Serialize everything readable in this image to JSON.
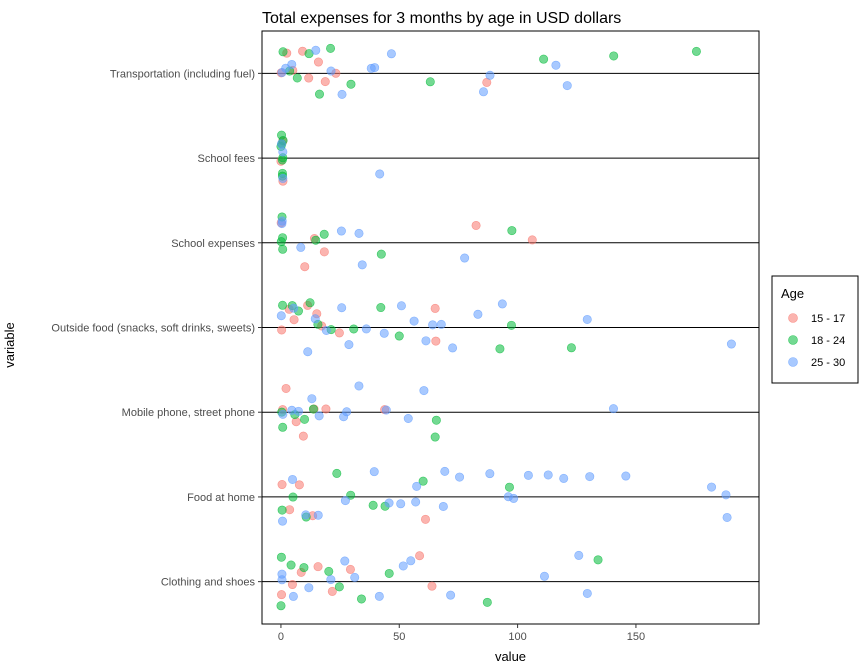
{
  "chart_data": {
    "type": "scatter",
    "title": "Total expenses for 3 months by age in USD dollars",
    "xlabel": "value",
    "ylabel": "variable",
    "xlim": [
      -8,
      202
    ],
    "x_ticks": [
      "0",
      "50",
      "100",
      "150"
    ],
    "categories": [
      "Clothing and shoes",
      "Food at home",
      "Mobile phone, street phone",
      "Outside food (snacks, soft drinks, sweets)",
      "School expenses",
      "School fees",
      "Transportation (including fuel)"
    ],
    "legend": {
      "title": "Age",
      "position": "right",
      "entries": [
        "15 - 17",
        "18 - 24",
        "25 - 30"
      ]
    },
    "colors": {
      "15 - 17": "#F8766D",
      "18 - 24": "#00BA38",
      "25 - 30": "#619CFF"
    },
    "series": [
      {
        "name": "15 - 17",
        "points": [
          [
            "Transportation (including fuel)",
            0
          ],
          [
            "Transportation (including fuel)",
            2
          ],
          [
            "Transportation (including fuel)",
            5
          ],
          [
            "Transportation (including fuel)",
            8
          ],
          [
            "Transportation (including fuel)",
            12
          ],
          [
            "Transportation (including fuel)",
            15
          ],
          [
            "Transportation (including fuel)",
            20
          ],
          [
            "Transportation (including fuel)",
            24
          ],
          [
            "Transportation (including fuel)",
            88
          ],
          [
            "School fees",
            0
          ],
          [
            "School fees",
            0
          ],
          [
            "School fees",
            0
          ],
          [
            "School expenses",
            0
          ],
          [
            "School expenses",
            11
          ],
          [
            "School expenses",
            14
          ],
          [
            "School expenses",
            19
          ],
          [
            "School expenses",
            81
          ],
          [
            "School expenses",
            107
          ],
          [
            "Outside food (snacks, soft drinks, sweets)",
            0
          ],
          [
            "Outside food (snacks, soft drinks, sweets)",
            3
          ],
          [
            "Outside food (snacks, soft drinks, sweets)",
            6
          ],
          [
            "Outside food (snacks, soft drinks, sweets)",
            10
          ],
          [
            "Outside food (snacks, soft drinks, sweets)",
            14
          ],
          [
            "Outside food (snacks, soft drinks, sweets)",
            18
          ],
          [
            "Outside food (snacks, soft drinks, sweets)",
            25
          ],
          [
            "Outside food (snacks, soft drinks, sweets)",
            65
          ],
          [
            "Outside food (snacks, soft drinks, sweets)",
            66
          ],
          [
            "Mobile phone, street phone",
            0
          ],
          [
            "Mobile phone, street phone",
            2
          ],
          [
            "Mobile phone, street phone",
            6
          ],
          [
            "Mobile phone, street phone",
            10
          ],
          [
            "Mobile phone, street phone",
            14
          ],
          [
            "Mobile phone, street phone",
            18
          ],
          [
            "Mobile phone, street phone",
            44
          ],
          [
            "Food at home",
            0
          ],
          [
            "Food at home",
            3
          ],
          [
            "Food at home",
            7
          ],
          [
            "Food at home",
            12
          ],
          [
            "Food at home",
            60
          ],
          [
            "Clothing and shoes",
            0
          ],
          [
            "Clothing and shoes",
            4
          ],
          [
            "Clothing and shoes",
            9
          ],
          [
            "Clothing and shoes",
            16
          ],
          [
            "Clothing and shoes",
            21
          ],
          [
            "Clothing and shoes",
            28
          ],
          [
            "Clothing and shoes",
            59
          ],
          [
            "Clothing and shoes",
            64
          ]
        ]
      },
      {
        "name": "18 - 24",
        "points": [
          [
            "Transportation (including fuel)",
            0
          ],
          [
            "Transportation (including fuel)",
            3
          ],
          [
            "Transportation (including fuel)",
            7
          ],
          [
            "Transportation (including fuel)",
            11
          ],
          [
            "Transportation (including fuel)",
            17
          ],
          [
            "Transportation (including fuel)",
            22
          ],
          [
            "Transportation (including fuel)",
            29
          ],
          [
            "Transportation (including fuel)",
            62
          ],
          [
            "Transportation (including fuel)",
            110
          ],
          [
            "Transportation (including fuel)",
            142
          ],
          [
            "Transportation (including fuel)",
            177
          ],
          [
            "School fees",
            0
          ],
          [
            "School fees",
            0
          ],
          [
            "School fees",
            0
          ],
          [
            "School fees",
            0
          ],
          [
            "School fees",
            0
          ],
          [
            "School fees",
            0
          ],
          [
            "School fees",
            0
          ],
          [
            "School fees",
            0
          ],
          [
            "School expenses",
            0
          ],
          [
            "School expenses",
            0
          ],
          [
            "School expenses",
            0
          ],
          [
            "School expenses",
            0
          ],
          [
            "School expenses",
            14
          ],
          [
            "School expenses",
            17
          ],
          [
            "School expenses",
            42
          ],
          [
            "School expenses",
            98
          ],
          [
            "Outside food (snacks, soft drinks, sweets)",
            0
          ],
          [
            "Outside food (snacks, soft drinks, sweets)",
            4
          ],
          [
            "Outside food (snacks, soft drinks, sweets)",
            8
          ],
          [
            "Outside food (snacks, soft drinks, sweets)",
            12
          ],
          [
            "Outside food (snacks, soft drinks, sweets)",
            16
          ],
          [
            "Outside food (snacks, soft drinks, sweets)",
            20
          ],
          [
            "Outside food (snacks, soft drinks, sweets)",
            31
          ],
          [
            "Outside food (snacks, soft drinks, sweets)",
            41
          ],
          [
            "Outside food (snacks, soft drinks, sweets)",
            50
          ],
          [
            "Outside food (snacks, soft drinks, sweets)",
            92
          ],
          [
            "Outside food (snacks, soft drinks, sweets)",
            96
          ],
          [
            "Outside food (snacks, soft drinks, sweets)",
            123
          ],
          [
            "Mobile phone, street phone",
            0
          ],
          [
            "Mobile phone, street phone",
            0
          ],
          [
            "Mobile phone, street phone",
            5
          ],
          [
            "Mobile phone, street phone",
            9
          ],
          [
            "Mobile phone, street phone",
            15
          ],
          [
            "Mobile phone, street phone",
            65
          ],
          [
            "Mobile phone, street phone",
            66
          ],
          [
            "Food at home",
            0
          ],
          [
            "Food at home",
            5
          ],
          [
            "Food at home",
            10
          ],
          [
            "Food at home",
            24
          ],
          [
            "Food at home",
            28
          ],
          [
            "Food at home",
            40
          ],
          [
            "Food at home",
            45
          ],
          [
            "Food at home",
            60
          ],
          [
            "Food at home",
            98
          ],
          [
            "Clothing and shoes",
            0
          ],
          [
            "Clothing and shoes",
            0
          ],
          [
            "Clothing and shoes",
            4
          ],
          [
            "Clothing and shoes",
            9
          ],
          [
            "Clothing and shoes",
            19
          ],
          [
            "Clothing and shoes",
            25
          ],
          [
            "Clothing and shoes",
            35
          ],
          [
            "Clothing and shoes",
            46
          ],
          [
            "Clothing and shoes",
            87
          ],
          [
            "Clothing and shoes",
            135
          ]
        ]
      },
      {
        "name": "25 - 30",
        "points": [
          [
            "Transportation (including fuel)",
            0
          ],
          [
            "Transportation (including fuel)",
            2
          ],
          [
            "Transportation (including fuel)",
            6
          ],
          [
            "Transportation (including fuel)",
            14
          ],
          [
            "Transportation (including fuel)",
            21
          ],
          [
            "Transportation (including fuel)",
            27
          ],
          [
            "Transportation (including fuel)",
            39
          ],
          [
            "Transportation (including fuel)",
            41
          ],
          [
            "Transportation (including fuel)",
            46
          ],
          [
            "Transportation (including fuel)",
            87
          ],
          [
            "Transportation (including fuel)",
            89
          ],
          [
            "Transportation (including fuel)",
            117
          ],
          [
            "Transportation (including fuel)",
            121
          ],
          [
            "School fees",
            0
          ],
          [
            "School fees",
            0
          ],
          [
            "School fees",
            0
          ],
          [
            "School fees",
            42
          ],
          [
            "School expenses",
            0
          ],
          [
            "School expenses",
            0
          ],
          [
            "School expenses",
            7
          ],
          [
            "School expenses",
            26
          ],
          [
            "School expenses",
            34
          ],
          [
            "School expenses",
            34
          ],
          [
            "School expenses",
            77
          ],
          [
            "Outside food (snacks, soft drinks, sweets)",
            0
          ],
          [
            "Outside food (snacks, soft drinks, sweets)",
            5
          ],
          [
            "Outside food (snacks, soft drinks, sweets)",
            11
          ],
          [
            "Outside food (snacks, soft drinks, sweets)",
            15
          ],
          [
            "Outside food (snacks, soft drinks, sweets)",
            19
          ],
          [
            "Outside food (snacks, soft drinks, sweets)",
            26
          ],
          [
            "Outside food (snacks, soft drinks, sweets)",
            28
          ],
          [
            "Outside food (snacks, soft drinks, sweets)",
            36
          ],
          [
            "Outside food (snacks, soft drinks, sweets)",
            44
          ],
          [
            "Outside food (snacks, soft drinks, sweets)",
            52
          ],
          [
            "Outside food (snacks, soft drinks, sweets)",
            55
          ],
          [
            "Outside food (snacks, soft drinks, sweets)",
            60
          ],
          [
            "Outside food (snacks, soft drinks, sweets)",
            63
          ],
          [
            "Outside food (snacks, soft drinks, sweets)",
            69
          ],
          [
            "Outside food (snacks, soft drinks, sweets)",
            73
          ],
          [
            "Outside food (snacks, soft drinks, sweets)",
            84
          ],
          [
            "Outside food (snacks, soft drinks, sweets)",
            94
          ],
          [
            "Outside food (snacks, soft drinks, sweets)",
            128
          ],
          [
            "Outside food (snacks, soft drinks, sweets)",
            190
          ],
          [
            "Mobile phone, street phone",
            0
          ],
          [
            "Mobile phone, street phone",
            4
          ],
          [
            "Mobile phone, street phone",
            8
          ],
          [
            "Mobile phone, street phone",
            13
          ],
          [
            "Mobile phone, street phone",
            17
          ],
          [
            "Mobile phone, street phone",
            26
          ],
          [
            "Mobile phone, street phone",
            29
          ],
          [
            "Mobile phone, street phone",
            33
          ],
          [
            "Mobile phone, street phone",
            46
          ],
          [
            "Mobile phone, street phone",
            55
          ],
          [
            "Mobile phone, street phone",
            61
          ],
          [
            "Mobile phone, street phone",
            140
          ],
          [
            "Food at home",
            0
          ],
          [
            "Food at home",
            4
          ],
          [
            "Food at home",
            9
          ],
          [
            "Food at home",
            15
          ],
          [
            "Food at home",
            26
          ],
          [
            "Food at home",
            40
          ],
          [
            "Food at home",
            47
          ],
          [
            "Food at home",
            51
          ],
          [
            "Food at home",
            56
          ],
          [
            "Food at home",
            58
          ],
          [
            "Food at home",
            68
          ],
          [
            "Food at home",
            70
          ],
          [
            "Food at home",
            76
          ],
          [
            "Food at home",
            89
          ],
          [
            "Food at home",
            96
          ],
          [
            "Food at home",
            97
          ],
          [
            "Food at home",
            105
          ],
          [
            "Food at home",
            114
          ],
          [
            "Food at home",
            120
          ],
          [
            "Food at home",
            131
          ],
          [
            "Food at home",
            146
          ],
          [
            "Food at home",
            181
          ],
          [
            "Food at home",
            188
          ],
          [
            "Food at home",
            188
          ],
          [
            "Clothing and shoes",
            0
          ],
          [
            "Clothing and shoes",
            0
          ],
          [
            "Clothing and shoes",
            6
          ],
          [
            "Clothing and shoes",
            12
          ],
          [
            "Clothing and shoes",
            20
          ],
          [
            "Clothing and shoes",
            27
          ],
          [
            "Clothing and shoes",
            32
          ],
          [
            "Clothing and shoes",
            41
          ],
          [
            "Clothing and shoes",
            51
          ],
          [
            "Clothing and shoes",
            55
          ],
          [
            "Clothing and shoes",
            73
          ],
          [
            "Clothing and shoes",
            112
          ],
          [
            "Clothing and shoes",
            126
          ],
          [
            "Clothing and shoes",
            130
          ]
        ]
      }
    ]
  }
}
